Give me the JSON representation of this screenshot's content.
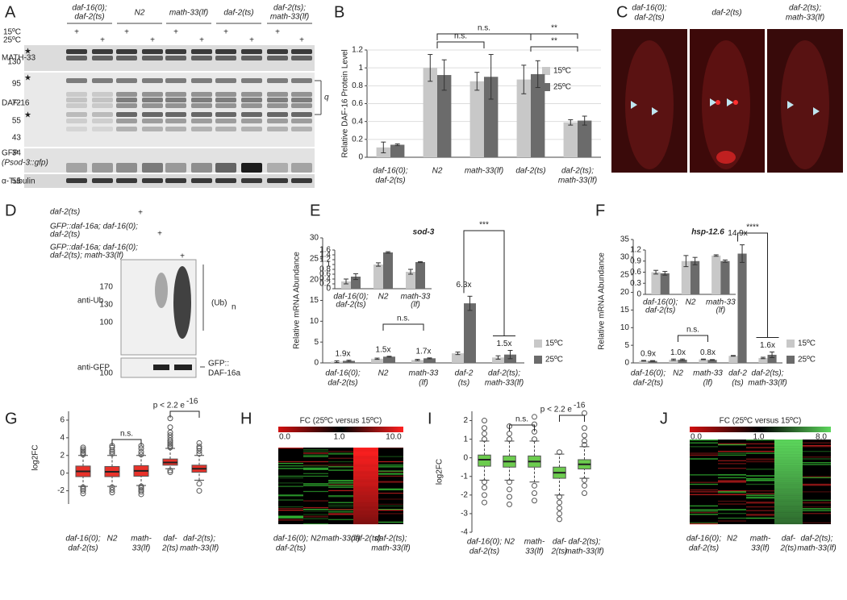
{
  "panels": [
    "A",
    "B",
    "C",
    "D",
    "E",
    "F",
    "G",
    "H",
    "I",
    "J"
  ],
  "plus": "+",
  "blot_a": {
    "groups": [
      [
        "daf-16(0);",
        "daf-2(ts)"
      ],
      [
        "N2"
      ],
      [
        "math-33(lf)"
      ],
      [
        "daf-2(ts)"
      ],
      [
        "daf-2(ts);",
        "math-33(lf)"
      ]
    ],
    "temps": [
      "15ºC",
      "25ºC"
    ],
    "rows": [
      "MATH-33",
      "DAF-16",
      "GFP",
      "(Psod-3::gfp)",
      "α-Tubulin"
    ],
    "mw": [
      "130",
      "95",
      "72",
      "55",
      "43",
      "34",
      "55"
    ],
    "bracket": "q"
  },
  "images_c": [
    [
      "daf-16(0);",
      "daf-2(ts)"
    ],
    [
      "daf-2(ts)"
    ],
    [
      "daf-2(ts);",
      "math-33(lf)"
    ]
  ],
  "blot_d": {
    "lanes": [
      [
        "daf-2(ts)"
      ],
      [
        "GFP::daf-16a; daf-16(0);",
        "daf-2(ts)"
      ],
      [
        "GFP::daf-16a; daf-16(0);",
        "daf-2(ts); math-33(lf)"
      ]
    ],
    "rows": [
      "anti-Ub",
      "anti-GFP"
    ],
    "mw": [
      "170",
      "130",
      "100",
      "100"
    ],
    "ub": "(Ub)",
    "ub_sub": "n",
    "gfp": [
      "GFP::",
      "DAF-16a"
    ]
  },
  "heatmaps": [
    {
      "title": "FC (25ºC versus 15ºC)",
      "scale_labels": [
        "0.0",
        "1.0",
        "10.0"
      ],
      "high_color": "#ff2020",
      "categories": [
        [
          "daf-16(0);",
          "daf-2(ts)"
        ],
        [
          "N2"
        ],
        [
          "math-33(lf)"
        ],
        [
          "daf-2(ts)"
        ],
        [
          "daf-2(ts);",
          "math-33(lf)"
        ]
      ]
    },
    {
      "title": "FC (25ºC versus 15ºC)",
      "scale_labels": [
        "0.0",
        "1.0",
        "8.0"
      ],
      "high_color": "#5cd65c",
      "categories": [
        [
          "daf-16(0);",
          "daf-2(ts)"
        ],
        [
          "N2"
        ],
        [
          "math-",
          "33(lf)"
        ],
        [
          "daf-",
          "2(ts)"
        ],
        [
          "daf-2(ts);",
          "math-33(lf)"
        ]
      ]
    }
  ],
  "chart_data": [
    {
      "type": "bar",
      "ylabel": "Relative DAF-16 Protein Level",
      "grid": true,
      "categories": [
        [
          "daf-16(0);",
          "daf-2(ts)"
        ],
        [
          "N2"
        ],
        [
          "math-33(lf)"
        ],
        [
          "daf-2(ts)"
        ],
        [
          "daf-2(ts);",
          "math-33(lf)"
        ]
      ],
      "series": [
        {
          "name": "15ºC",
          "color": "#c8c8c8",
          "values": [
            0.11,
            1.0,
            0.85,
            0.87,
            0.39
          ],
          "errors": [
            0.06,
            0.15,
            0.1,
            0.16,
            0.03
          ]
        },
        {
          "name": "25ºC",
          "color": "#6b6b6b",
          "values": [
            0.14,
            0.92,
            0.9,
            0.93,
            0.41
          ],
          "errors": [
            0.01,
            0.17,
            0.25,
            0.15,
            0.05
          ]
        }
      ],
      "ylim": [
        0,
        1.2
      ],
      "yticks": [
        0,
        0.2,
        0.4,
        0.6,
        0.8,
        1,
        1.2
      ],
      "annotations": [
        {
          "text": "n.s."
        },
        {
          "text": "n.s."
        },
        {
          "text": "**"
        },
        {
          "text": "**"
        }
      ]
    },
    {
      "type": "bar",
      "title": "sod-3",
      "ylabel": "Relative mRNA Abundance",
      "grid": false,
      "categories": [
        [
          "daf-16(0);",
          "daf-2(ts)"
        ],
        [
          "N2"
        ],
        [
          "math-33",
          "(lf)"
        ],
        [
          "daf-2",
          "(ts)"
        ],
        [
          "daf-2(ts);",
          "math-33(lf)"
        ]
      ],
      "series": [
        {
          "name": "15ºC",
          "color": "#c8c8c8",
          "values": [
            0.3,
            1.0,
            0.7,
            2.3,
            1.3
          ],
          "errors": [
            0.2,
            0.15,
            0.15,
            0.3,
            0.4
          ]
        },
        {
          "name": "25ºC",
          "color": "#6b6b6b",
          "values": [
            0.5,
            1.5,
            1.1,
            14.3,
            2.0
          ],
          "errors": [
            0.15,
            0.1,
            0.1,
            1.7,
            1.0
          ]
        }
      ],
      "fold_labels": [
        "1.9x",
        "1.5x",
        "1.7x",
        "6.3x",
        "1.5x"
      ],
      "ylim": [
        0,
        30
      ],
      "yticks": [
        0,
        5,
        10,
        15,
        20,
        25,
        30
      ],
      "annotations": [
        {
          "text": "n.s."
        },
        {
          "text": "***"
        }
      ]
    },
    {
      "type": "bar",
      "grid": false,
      "categories": [
        [
          "daf-16(0);",
          "daf-2(ts)"
        ],
        [
          "N2"
        ],
        [
          "math-33",
          "(lf)"
        ]
      ],
      "series": [
        {
          "color": "#c8c8c8",
          "values": [
            0.3,
            1.0,
            0.7
          ],
          "errors": [
            0.1,
            0.07,
            0.1
          ]
        },
        {
          "color": "#6b6b6b",
          "values": [
            0.5,
            1.5,
            1.1
          ],
          "errors": [
            0.12,
            0.03,
            0.02
          ]
        }
      ],
      "ylim": [
        0,
        1.6
      ],
      "yticks": [
        0,
        0.2,
        0.4,
        0.6,
        0.8,
        1,
        1.2,
        1.4,
        1.6
      ]
    },
    {
      "type": "bar",
      "title": "hsp-12.6",
      "ylabel": "Relative mRNA Abundance",
      "grid": false,
      "categories": [
        [
          "daf-16(0);",
          "daf-2(ts)"
        ],
        [
          "N2"
        ],
        [
          "math-33",
          "(lf)"
        ],
        [
          "daf-2",
          "(ts)"
        ],
        [
          "daf-2(ts);",
          "math-33(lf)"
        ]
      ],
      "series": [
        {
          "name": "15ºC",
          "color": "#c8c8c8",
          "values": [
            0.6,
            0.9,
            1.0,
            2.0,
            1.4
          ],
          "errors": [
            0.1,
            0.2,
            0.1,
            0.1,
            0.2
          ]
        },
        {
          "name": "25ºC",
          "color": "#6b6b6b",
          "values": [
            0.55,
            0.9,
            0.85,
            31,
            2.3
          ],
          "errors": [
            0.1,
            0.2,
            0.1,
            2.5,
            0.8
          ]
        }
      ],
      "fold_labels": [
        "0.9x",
        "1.0x",
        "0.8x",
        "14.9x",
        "1.6x"
      ],
      "ylim": [
        0,
        35
      ],
      "yticks": [
        0,
        5,
        10,
        15,
        20,
        25,
        30,
        35
      ],
      "annotations": [
        {
          "text": "n.s."
        },
        {
          "text": "****"
        }
      ]
    },
    {
      "type": "bar",
      "grid": false,
      "categories": [
        [
          "daf-16(0);",
          "daf-2(ts)"
        ],
        [
          "N2"
        ],
        [
          "math-33",
          "(lf)"
        ]
      ],
      "series": [
        {
          "color": "#c8c8c8",
          "values": [
            0.6,
            0.9,
            1.05
          ],
          "errors": [
            0.05,
            0.15,
            0.02
          ]
        },
        {
          "color": "#6b6b6b",
          "values": [
            0.57,
            0.9,
            0.9
          ],
          "errors": [
            0.05,
            0.1,
            0.03
          ]
        }
      ],
      "ylim": [
        0,
        1.2
      ],
      "yticks": [
        0,
        0.3,
        0.6,
        0.9,
        1.2
      ]
    },
    {
      "type": "box",
      "ylabel": "log2FC",
      "color": "#e8322a",
      "categories": [
        [
          "daf-16(0);",
          "daf-2(ts)"
        ],
        [
          "N2"
        ],
        [
          "math-",
          "33(lf)"
        ],
        [
          "daf-",
          "2(ts)"
        ],
        [
          "daf-2(ts);",
          "math-33(lf)"
        ]
      ],
      "boxes": [
        {
          "whislo": -1.5,
          "q1": -0.4,
          "med": 0.2,
          "q3": 0.8,
          "whishi": 2.0,
          "outliers": [
            -1.6,
            -1.8,
            -2.0,
            -2.3,
            2.1,
            2.3,
            2.5,
            2.7,
            2.9
          ]
        },
        {
          "whislo": -1.5,
          "q1": -0.4,
          "med": 0.15,
          "q3": 0.75,
          "whishi": 2.0,
          "outliers": [
            -1.6,
            -1.9,
            -2.2,
            2.2,
            2.4,
            2.6,
            2.9,
            3.1
          ]
        },
        {
          "whislo": -1.4,
          "q1": -0.35,
          "med": 0.25,
          "q3": 0.85,
          "whishi": 2.0,
          "outliers": [
            -1.5,
            -1.7,
            -1.9,
            -2.1,
            -2.4,
            2.1,
            2.4,
            2.8,
            3.1
          ]
        },
        {
          "whislo": 0.5,
          "q1": 0.9,
          "med": 1.2,
          "q3": 1.6,
          "whishi": 2.8,
          "outliers": [
            0.3,
            0.1,
            2.9,
            3.1,
            3.3,
            3.5,
            3.7,
            4.0,
            4.3,
            4.6,
            5.2,
            6.2
          ]
        },
        {
          "whislo": -0.8,
          "q1": 0.1,
          "med": 0.5,
          "q3": 0.9,
          "whishi": 2.0,
          "outliers": [
            -2.0,
            -1.2,
            2.2,
            2.5,
            2.8,
            3.0,
            3.4
          ]
        }
      ],
      "ylim": [
        -3.5,
        7
      ],
      "yticks": [
        -2,
        0,
        2,
        4,
        6
      ],
      "annotations": [
        {
          "text": "n.s."
        },
        {
          "text": "p < 2.2 e",
          "sup": "-16"
        }
      ]
    },
    {
      "type": "box",
      "ylabel": "log2FC",
      "color": "#6ccc4e",
      "categories": [
        [
          "daf-16(0);",
          "daf-2(ts)"
        ],
        [
          "N2"
        ],
        [
          "math-",
          "33(lf)"
        ],
        [
          "daf-",
          "2(ts)"
        ],
        [
          "daf-2(ts);",
          "math-33(lf)"
        ]
      ],
      "boxes": [
        {
          "whislo": -1.2,
          "q1": -0.45,
          "med": -0.1,
          "q3": 0.15,
          "whishi": 0.9,
          "outliers": [
            -1.3,
            -1.6,
            -2.0,
            -2.4,
            1.0,
            1.3,
            1.6,
            2.0
          ]
        },
        {
          "whislo": -1.2,
          "q1": -0.5,
          "med": -0.2,
          "q3": 0.1,
          "whishi": 0.9,
          "outliers": [
            -1.3,
            -1.7,
            -2.1,
            -2.5,
            1.0,
            1.3,
            1.7
          ]
        },
        {
          "whislo": -1.3,
          "q1": -0.5,
          "med": -0.2,
          "q3": 0.1,
          "whishi": 0.9,
          "outliers": [
            -1.5,
            -1.9,
            -2.3,
            1.0,
            1.4,
            1.8,
            2.2
          ]
        },
        {
          "whislo": -2.0,
          "q1": -1.1,
          "med": -0.8,
          "q3": -0.5,
          "whishi": 0.2,
          "outliers": [
            -2.1,
            -2.4,
            -2.7,
            -3.0,
            -3.3,
            0.3
          ]
        },
        {
          "whislo": -1.1,
          "q1": -0.6,
          "med": -0.35,
          "q3": -0.1,
          "whishi": 0.6,
          "outliers": [
            -1.2,
            -1.5,
            -1.9,
            0.7,
            0.9,
            1.2,
            1.6,
            2.4
          ]
        }
      ],
      "ylim": [
        -4,
        2.5
      ],
      "yticks": [
        -4,
        -3,
        -2,
        -1,
        0,
        1,
        2
      ],
      "annotations": [
        {
          "text": "n.s."
        },
        {
          "text": "p < 2.2 e",
          "sup": "-16"
        }
      ]
    }
  ]
}
